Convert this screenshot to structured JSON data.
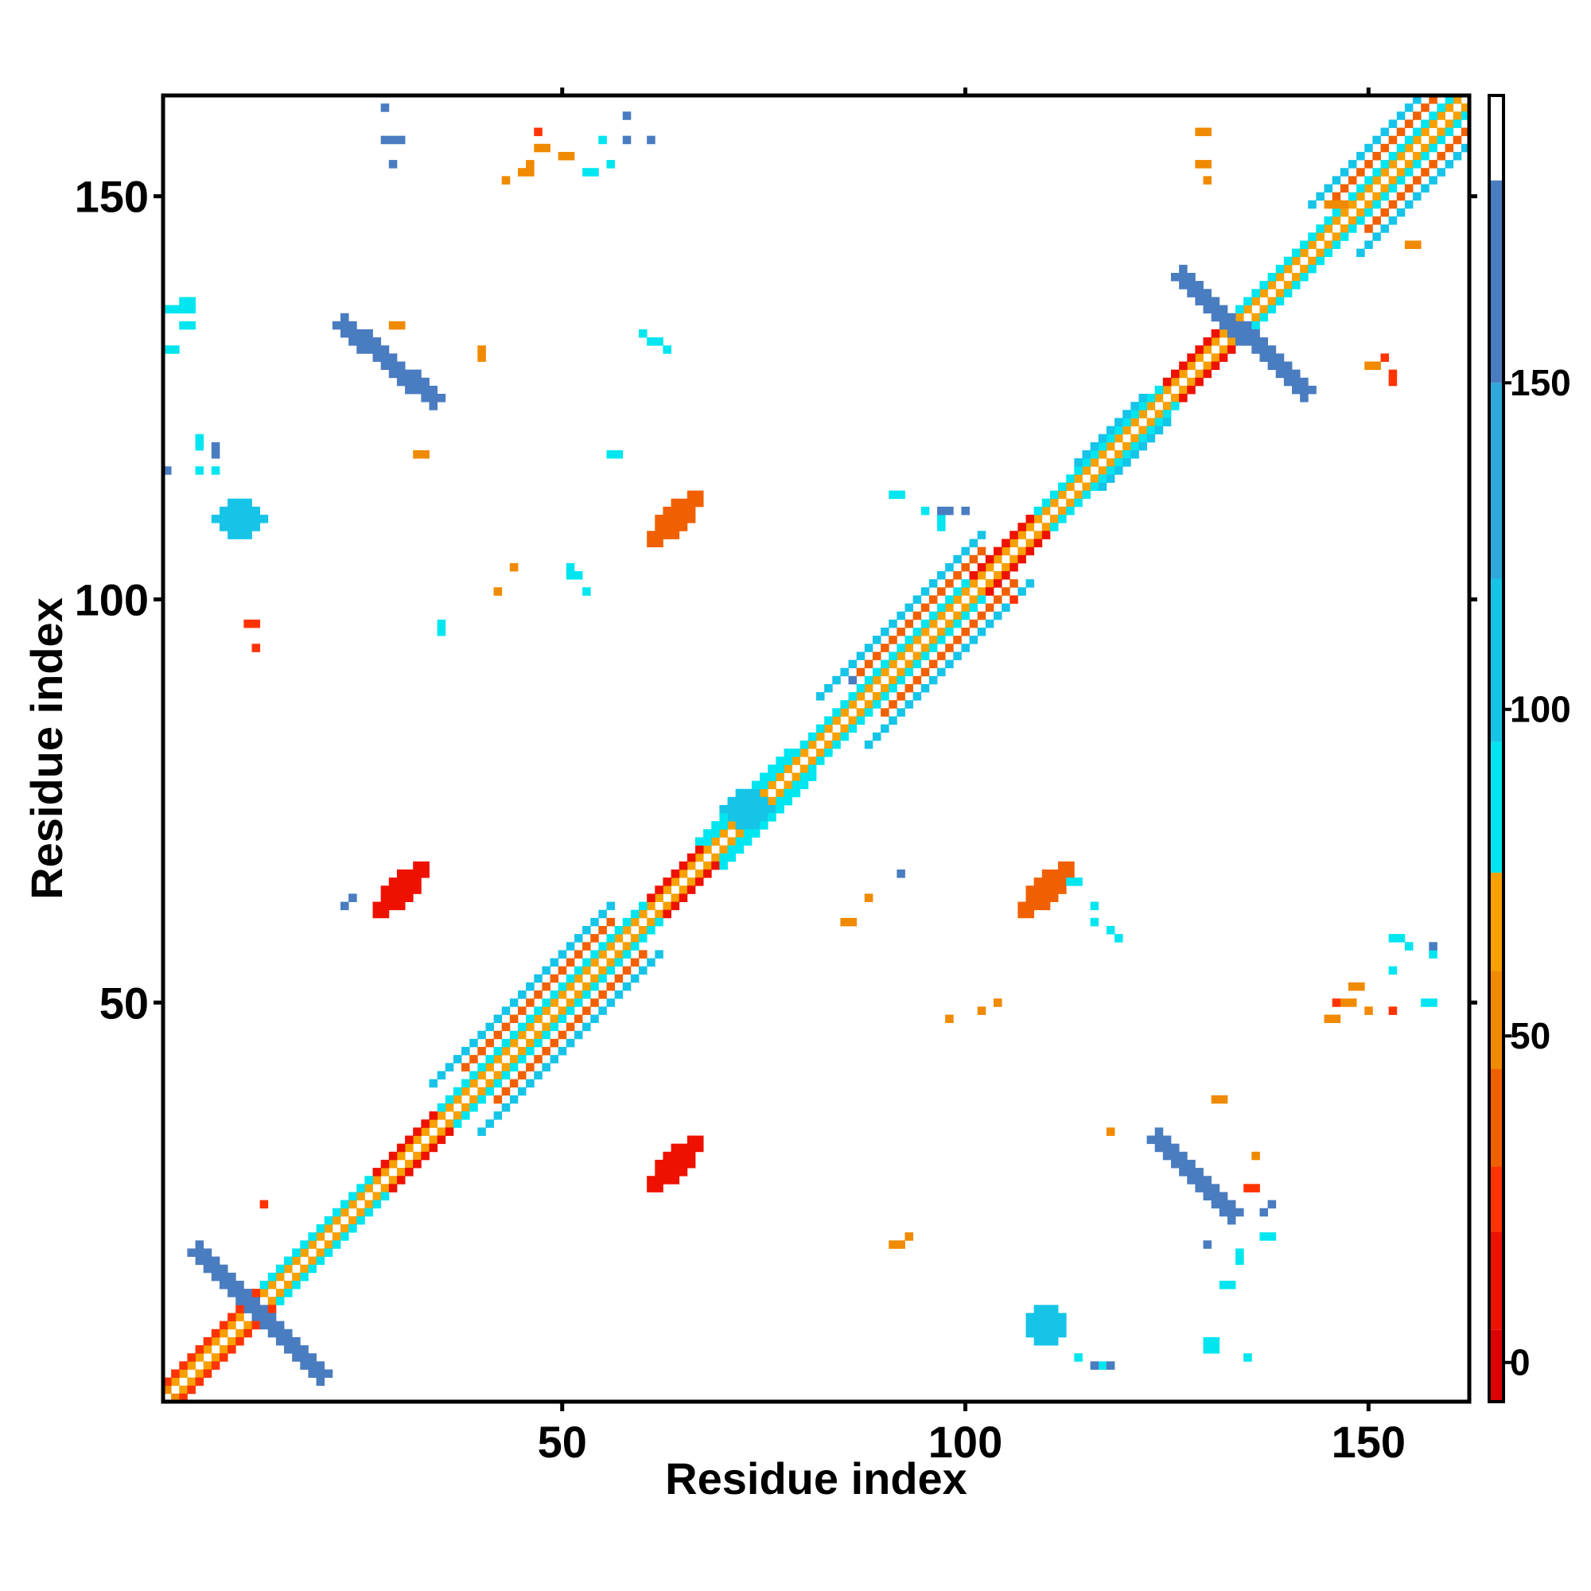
{
  "chart_data": {
    "type": "heatmap",
    "title": "",
    "xlabel": "Residue index",
    "ylabel": "Residue index",
    "xlim": [
      1,
      162
    ],
    "ylim": [
      1,
      162
    ],
    "xticks": [
      50,
      100,
      150
    ],
    "yticks": [
      50,
      100,
      150
    ],
    "grid": false,
    "colorbar": {
      "ticks": [
        0,
        50,
        100,
        150
      ],
      "range": [
        -6,
        194
      ],
      "bands": [
        {
          "from": -6,
          "to": 5,
          "color": "#dd0000"
        },
        {
          "from": 5,
          "to": 20,
          "color": "#ee1100"
        },
        {
          "from": 20,
          "to": 30,
          "color": "#ff3300"
        },
        {
          "from": 30,
          "to": 45,
          "color": "#f06000"
        },
        {
          "from": 45,
          "to": 60,
          "color": "#f08a00"
        },
        {
          "from": 60,
          "to": 75,
          "color": "#f7a000"
        },
        {
          "from": 75,
          "to": 95,
          "color": "#00e6f0"
        },
        {
          "from": 95,
          "to": 120,
          "color": "#16c4e8"
        },
        {
          "from": 120,
          "to": 150,
          "color": "#2ea8da"
        },
        {
          "from": 150,
          "to": 181,
          "color": "#4a7cc0"
        },
        {
          "from": 181,
          "to": 194,
          "color": "#ffffff"
        }
      ]
    },
    "features": [
      {
        "kind": "diag",
        "from": 1,
        "to": 161,
        "w": 1,
        "value": 40
      },
      {
        "kind": "diag",
        "from": 2,
        "to": 161,
        "w": 1,
        "value": 55
      },
      {
        "kind": "diag",
        "from": 3,
        "to": 161,
        "w": 1,
        "value": 70
      },
      {
        "kind": "diag",
        "from": 4,
        "to": 161,
        "w": 2,
        "value": 88
      },
      {
        "kind": "diag",
        "from": 40,
        "to": 56,
        "w": 6,
        "value": 100
      },
      {
        "kind": "diag",
        "from": 42,
        "to": 56,
        "w": 4,
        "value": 40
      },
      {
        "kind": "diag",
        "from": 88,
        "to": 102,
        "w": 6,
        "value": 100
      },
      {
        "kind": "diag",
        "from": 90,
        "to": 102,
        "w": 4,
        "value": 40
      },
      {
        "kind": "diag",
        "from": 149,
        "to": 160,
        "w": 6,
        "value": 100
      },
      {
        "kind": "diag",
        "from": 150,
        "to": 160,
        "w": 4,
        "value": 35
      },
      {
        "kind": "diag",
        "from": 2,
        "to": 12,
        "w": 2,
        "value": 20
      },
      {
        "kind": "diag",
        "from": 29,
        "to": 34,
        "w": 2,
        "value": 5
      },
      {
        "kind": "diag",
        "from": 63,
        "to": 67,
        "w": 2,
        "value": 5
      },
      {
        "kind": "diag",
        "from": 127,
        "to": 133,
        "w": 2,
        "value": 5
      },
      {
        "kind": "diag",
        "from": 103,
        "to": 108,
        "w": 2,
        "value": 10
      },
      {
        "kind": "diag",
        "from": 70,
        "to": 78,
        "w": 3,
        "value": 90
      },
      {
        "kind": "diag",
        "from": 117,
        "to": 122,
        "w": 3,
        "value": 95
      },
      {
        "kind": "anti",
        "x1": 5,
        "x2": 20,
        "y1": 19,
        "y2": 4,
        "w": 2,
        "value": 160
      },
      {
        "kind": "anti",
        "x1": 127,
        "x2": 142,
        "y1": 140,
        "y2": 126,
        "w": 2,
        "value": 160
      },
      {
        "kind": "line",
        "x1": 23,
        "y1": 134,
        "x2": 34,
        "y2": 125,
        "w": 2,
        "value": 160
      },
      {
        "kind": "line",
        "x1": 124,
        "y1": 33,
        "x2": 133,
        "y2": 24,
        "w": 2,
        "value": 160
      },
      {
        "kind": "ellipse",
        "cx": 64,
        "cy": 110,
        "rx": 4.5,
        "ry": 1.6,
        "angle": 45,
        "value": 30
      },
      {
        "kind": "ellipse",
        "cx": 64,
        "cy": 30,
        "rx": 4.5,
        "ry": 1.8,
        "angle": 45,
        "value": 10
      },
      {
        "kind": "ellipse",
        "cx": 30,
        "cy": 64,
        "rx": 4.5,
        "ry": 1.8,
        "angle": 45,
        "value": 10
      },
      {
        "kind": "ellipse",
        "cx": 110,
        "cy": 64,
        "rx": 4.5,
        "ry": 1.6,
        "angle": 45,
        "value": 30
      },
      {
        "kind": "ellipse",
        "cx": 10,
        "cy": 110,
        "rx": 3,
        "ry": 2.2,
        "angle": 0,
        "value": 105
      },
      {
        "kind": "ellipse",
        "cx": 110,
        "cy": 10,
        "rx": 2.5,
        "ry": 2.5,
        "angle": 0,
        "value": 105
      },
      {
        "kind": "ellipse",
        "cx": 73,
        "cy": 74,
        "rx": 3,
        "ry": 2.5,
        "angle": 0,
        "value": 105
      },
      {
        "kind": "cells",
        "value": 150,
        "pts": [
          [
            28,
            161
          ],
          [
            28,
            157
          ],
          [
            29,
            157
          ],
          [
            30,
            157
          ],
          [
            29,
            154
          ],
          [
            58,
            160
          ],
          [
            61,
            157
          ]
        ]
      },
      {
        "kind": "cells",
        "value": 90,
        "pts": [
          [
            55,
            157
          ],
          [
            56,
            154
          ],
          [
            53,
            153
          ],
          [
            54,
            153
          ],
          [
            60,
            133
          ],
          [
            61,
            132
          ],
          [
            62,
            132
          ],
          [
            63,
            131
          ],
          [
            56,
            118
          ],
          [
            57,
            118
          ],
          [
            51,
            104
          ],
          [
            51,
            103
          ],
          [
            52,
            103
          ],
          [
            53,
            101
          ],
          [
            35,
            97
          ],
          [
            35,
            96
          ],
          [
            3,
            137
          ],
          [
            4,
            137
          ],
          [
            3,
            136
          ],
          [
            4,
            136
          ],
          [
            3,
            134
          ],
          [
            4,
            134
          ],
          [
            1,
            136
          ],
          [
            2,
            136
          ],
          [
            1,
            131
          ],
          [
            2,
            131
          ],
          [
            5,
            120
          ],
          [
            5,
            119
          ],
          [
            5,
            116
          ],
          [
            7,
            116
          ],
          [
            91,
            113
          ],
          [
            92,
            113
          ],
          [
            95,
            111
          ],
          [
            97,
            110
          ],
          [
            97,
            109
          ],
          [
            113,
            65
          ],
          [
            114,
            65
          ],
          [
            116,
            60
          ],
          [
            116,
            62
          ],
          [
            118,
            59
          ],
          [
            119,
            58
          ],
          [
            153,
            58
          ],
          [
            154,
            58
          ],
          [
            155,
            57
          ],
          [
            153,
            54
          ],
          [
            157,
            50
          ],
          [
            158,
            50
          ],
          [
            158,
            56
          ],
          [
            137,
            21
          ],
          [
            138,
            21
          ],
          [
            134,
            19
          ],
          [
            134,
            18
          ],
          [
            132,
            15
          ],
          [
            133,
            15
          ],
          [
            130,
            8
          ],
          [
            131,
            8
          ],
          [
            130,
            7
          ],
          [
            131,
            7
          ],
          [
            117,
            5
          ],
          [
            118,
            5
          ],
          [
            114,
            6
          ],
          [
            135,
            6
          ]
        ]
      },
      {
        "kind": "cells",
        "value": 55,
        "pts": [
          [
            47,
            156
          ],
          [
            48,
            156
          ],
          [
            50,
            155
          ],
          [
            51,
            155
          ],
          [
            46,
            154
          ],
          [
            45,
            153
          ],
          [
            46,
            153
          ],
          [
            43,
            152
          ],
          [
            129,
            158
          ],
          [
            130,
            158
          ],
          [
            129,
            154
          ],
          [
            130,
            154
          ],
          [
            130,
            152
          ],
          [
            145,
            149
          ],
          [
            146,
            149
          ],
          [
            147,
            149
          ],
          [
            155,
            144
          ],
          [
            156,
            144
          ],
          [
            150,
            129
          ],
          [
            151,
            129
          ],
          [
            148,
            52
          ],
          [
            149,
            52
          ],
          [
            147,
            50
          ],
          [
            148,
            50
          ],
          [
            145,
            48
          ],
          [
            146,
            48
          ],
          [
            150,
            49
          ],
          [
            91,
            20
          ],
          [
            92,
            20
          ],
          [
            93,
            21
          ],
          [
            131,
            38
          ],
          [
            132,
            38
          ],
          [
            136,
            31
          ],
          [
            118,
            34
          ],
          [
            40,
            130
          ],
          [
            40,
            131
          ],
          [
            29,
            134
          ],
          [
            30,
            134
          ],
          [
            32,
            118
          ],
          [
            33,
            118
          ],
          [
            42,
            101
          ],
          [
            44,
            104
          ],
          [
            85,
            60
          ],
          [
            86,
            60
          ],
          [
            88,
            63
          ],
          [
            98,
            48
          ],
          [
            102,
            49
          ],
          [
            104,
            50
          ]
        ]
      },
      {
        "kind": "cells",
        "value": 20,
        "pts": [
          [
            47,
            158
          ],
          [
            11,
            97
          ],
          [
            12,
            97
          ],
          [
            12,
            94
          ],
          [
            153,
            127
          ],
          [
            153,
            128
          ],
          [
            152,
            130
          ],
          [
            153,
            49
          ],
          [
            146,
            50
          ],
          [
            135,
            27
          ],
          [
            136,
            27
          ],
          [
            106,
            100
          ],
          [
            13,
            25
          ]
        ]
      },
      {
        "kind": "cells",
        "value": 160,
        "pts": [
          [
            58,
            157
          ],
          [
            86,
            90
          ],
          [
            92,
            66
          ],
          [
            7,
            119
          ],
          [
            7,
            118
          ],
          [
            1,
            116
          ],
          [
            23,
            62
          ],
          [
            24,
            63
          ],
          [
            158,
            57
          ],
          [
            118,
            5
          ],
          [
            116,
            5
          ],
          [
            130,
            20
          ],
          [
            137,
            24
          ],
          [
            138,
            25
          ],
          [
            97,
            111
          ],
          [
            98,
            111
          ],
          [
            100,
            111
          ]
        ]
      }
    ]
  }
}
